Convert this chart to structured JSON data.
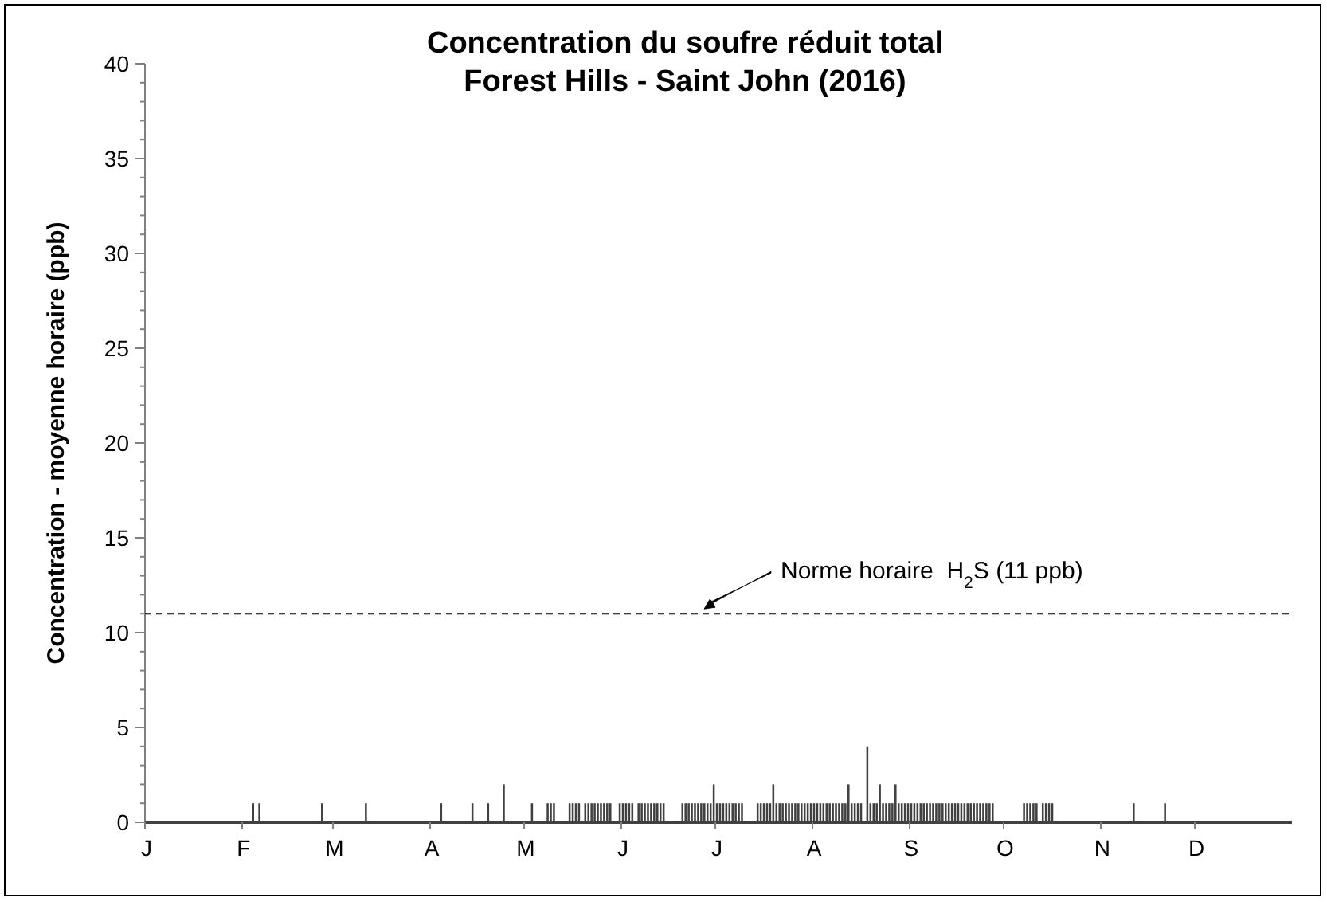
{
  "chart_data": {
    "type": "bar",
    "title": "Concentration du soufre réduit total\nForest Hills - Saint John (2016)",
    "ylabel": "Concentration - moyenne horaire (ppb)",
    "categories": [
      "J",
      null,
      null,
      null,
      null,
      null,
      null,
      null,
      null,
      null,
      null,
      null,
      null,
      null,
      null,
      null,
      null,
      null,
      null,
      null,
      null,
      null,
      null,
      null,
      null,
      null,
      null,
      null,
      null,
      null,
      null,
      "F",
      null,
      null,
      null,
      null,
      null,
      null,
      null,
      null,
      null,
      null,
      null,
      null,
      null,
      null,
      null,
      null,
      null,
      null,
      null,
      null,
      null,
      null,
      null,
      null,
      null,
      null,
      null,
      null,
      "M",
      null,
      null,
      null,
      null,
      null,
      null,
      null,
      null,
      null,
      null,
      null,
      null,
      null,
      null,
      null,
      null,
      null,
      null,
      null,
      null,
      null,
      null,
      null,
      null,
      null,
      null,
      null,
      null,
      null,
      null,
      "A",
      null,
      null,
      null,
      null,
      null,
      null,
      null,
      null,
      null,
      null,
      null,
      null,
      null,
      null,
      null,
      null,
      null,
      null,
      null,
      null,
      null,
      null,
      null,
      null,
      null,
      null,
      null,
      null,
      null,
      "M",
      null,
      null,
      null,
      null,
      null,
      null,
      null,
      null,
      null,
      null,
      null,
      null,
      null,
      null,
      null,
      null,
      null,
      null,
      null,
      null,
      null,
      null,
      null,
      null,
      null,
      null,
      null,
      null,
      null,
      null,
      "J",
      null,
      null,
      null,
      null,
      null,
      null,
      null,
      null,
      null,
      null,
      null,
      null,
      null,
      null,
      null,
      null,
      null,
      null,
      null,
      null,
      null,
      null,
      null,
      null,
      null,
      null,
      null,
      null,
      null,
      "J",
      null,
      null,
      null,
      null,
      null,
      null,
      null,
      null,
      null,
      null,
      null,
      null,
      null,
      null,
      null,
      null,
      null,
      null,
      null,
      null,
      null,
      null,
      null,
      null,
      null,
      null,
      null,
      null,
      null,
      null,
      "A",
      null,
      null,
      null,
      null,
      null,
      null,
      null,
      null,
      null,
      null,
      null,
      null,
      null,
      null,
      null,
      null,
      null,
      null,
      null,
      null,
      null,
      null,
      null,
      null,
      null,
      null,
      null,
      null,
      null,
      null,
      "S",
      null,
      null,
      null,
      null,
      null,
      null,
      null,
      null,
      null,
      null,
      null,
      null,
      null,
      null,
      null,
      null,
      null,
      null,
      null,
      null,
      null,
      null,
      null,
      null,
      null,
      null,
      null,
      null,
      null,
      "O",
      null,
      null,
      null,
      null,
      null,
      null,
      null,
      null,
      null,
      null,
      null,
      null,
      null,
      null,
      null,
      null,
      null,
      null,
      null,
      null,
      null,
      null,
      null,
      null,
      null,
      null,
      null,
      null,
      null,
      null,
      "N",
      null,
      null,
      null,
      null,
      null,
      null,
      null,
      null,
      null,
      null,
      null,
      null,
      null,
      null,
      null,
      null,
      null,
      null,
      null,
      null,
      null,
      null,
      null,
      null,
      null,
      null,
      null,
      null,
      null,
      "D",
      null,
      null,
      null,
      null,
      null,
      null,
      null,
      null,
      null,
      null,
      null,
      null,
      null,
      null,
      null,
      null,
      null,
      null,
      null,
      null,
      null,
      null,
      null,
      null,
      null,
      null,
      null,
      null,
      null,
      null
    ],
    "ylim": [
      0,
      40
    ],
    "yticks": [
      0,
      {
        "value": 1,
        "label": null
      },
      {
        "value": 2,
        "label": null
      },
      {
        "value": 3,
        "label": null
      },
      {
        "value": 4,
        "label": null
      },
      5,
      {
        "value": 6,
        "label": null
      },
      {
        "value": 7,
        "label": null
      },
      {
        "value": 8,
        "label": null
      },
      {
        "value": 9,
        "label": null
      },
      10,
      {
        "value": 11,
        "label": null
      },
      {
        "value": 12,
        "label": null
      },
      {
        "value": 13,
        "label": null
      },
      {
        "value": 14,
        "label": null
      },
      15,
      {
        "value": 16,
        "label": null
      },
      {
        "value": 17,
        "label": null
      },
      {
        "value": 18,
        "label": null
      },
      {
        "value": 19,
        "label": null
      },
      20,
      {
        "value": 21,
        "label": null
      },
      {
        "value": 22,
        "label": null
      },
      {
        "value": 23,
        "label": null
      },
      {
        "value": 24,
        "label": null
      },
      25,
      {
        "value": 26,
        "label": null
      },
      {
        "value": 27,
        "label": null
      },
      {
        "value": 28,
        "label": null
      },
      {
        "value": 29,
        "label": null
      },
      30,
      {
        "value": 31,
        "label": null
      },
      {
        "value": 32,
        "label": null
      },
      {
        "value": 33,
        "label": null
      },
      {
        "value": 34,
        "label": null
      },
      35,
      {
        "value": 36,
        "label": null
      },
      {
        "value": 37,
        "label": null
      },
      {
        "value": 38,
        "label": null
      },
      {
        "value": 39,
        "label": null
      },
      40
    ],
    "series": [
      {
        "color": "#404040",
        "values": [
          0,
          0,
          0,
          0,
          0,
          0,
          0,
          0,
          0,
          0,
          0,
          0,
          0,
          0,
          0,
          0,
          0,
          0,
          0,
          0,
          0,
          0,
          0,
          0,
          0,
          0,
          0,
          0,
          0,
          0,
          0,
          0,
          0,
          0,
          1,
          0,
          1,
          0,
          0,
          0,
          0,
          0,
          0,
          0,
          0,
          0,
          0,
          0,
          0,
          0,
          0,
          0,
          0,
          0,
          0,
          0,
          1,
          0,
          0,
          0,
          0,
          0,
          0,
          0,
          0,
          0,
          0,
          0,
          0,
          0,
          1,
          0,
          0,
          0,
          0,
          0,
          0,
          0,
          0,
          0,
          0,
          0,
          0,
          0,
          0,
          0,
          0,
          0,
          0,
          0,
          0,
          0,
          0,
          0,
          1,
          0,
          0,
          0,
          0,
          0,
          0,
          0,
          0,
          0,
          1,
          0,
          0,
          0,
          0,
          1,
          0,
          0,
          0,
          0,
          2,
          0,
          0,
          0,
          0,
          0,
          0,
          0,
          0,
          1,
          0,
          0,
          0,
          0,
          1,
          1,
          1,
          0,
          0,
          0,
          0,
          1,
          1,
          1,
          1,
          0,
          1,
          1,
          1,
          1,
          1,
          1,
          1,
          1,
          1,
          0,
          0,
          1,
          1,
          1,
          1,
          1,
          0,
          1,
          1,
          1,
          1,
          1,
          1,
          1,
          1,
          1,
          0,
          0,
          0,
          0,
          0,
          1,
          1,
          1,
          1,
          1,
          1,
          1,
          1,
          1,
          1,
          2,
          1,
          1,
          1,
          1,
          1,
          1,
          1,
          1,
          1,
          0,
          0,
          0,
          0,
          1,
          1,
          1,
          1,
          1,
          2,
          1,
          1,
          1,
          1,
          1,
          1,
          1,
          1,
          1,
          1,
          1,
          1,
          1,
          1,
          1,
          1,
          1,
          1,
          1,
          1,
          1,
          1,
          1,
          2,
          1,
          1,
          1,
          1,
          0,
          4,
          1,
          1,
          1,
          2,
          1,
          1,
          1,
          1,
          2,
          1,
          1,
          1,
          1,
          1,
          1,
          1,
          1,
          1,
          1,
          1,
          1,
          1,
          1,
          1,
          1,
          1,
          1,
          1,
          1,
          1,
          1,
          1,
          1,
          1,
          1,
          1,
          1,
          1,
          1,
          1,
          0,
          0,
          0,
          0,
          0,
          0,
          0,
          0,
          0,
          1,
          1,
          1,
          1,
          1,
          0,
          1,
          1,
          1,
          1,
          0,
          0,
          0,
          0,
          0,
          0,
          0,
          0,
          0,
          0,
          0,
          0,
          0,
          0,
          0,
          0,
          0,
          0,
          0,
          0,
          0,
          0,
          0,
          0,
          0,
          1,
          0,
          0,
          0,
          0,
          0,
          0,
          0,
          0,
          0,
          1,
          0,
          0,
          0,
          0,
          0,
          0,
          0,
          0,
          0,
          0,
          0,
          0,
          0,
          0,
          0,
          0,
          0,
          0,
          0,
          0,
          0,
          0,
          0,
          0,
          0,
          0,
          0,
          0,
          0,
          0,
          0,
          0,
          0,
          0,
          0,
          0,
          0,
          0,
          0,
          0
        ]
      }
    ],
    "ref_lines": [
      {
        "axis": "y",
        "value": 11,
        "label": "Norme horaire  H$_{2}$S (11 ppb)",
        "color": "#000000",
        "line_style": "dashed"
      }
    ]
  }
}
